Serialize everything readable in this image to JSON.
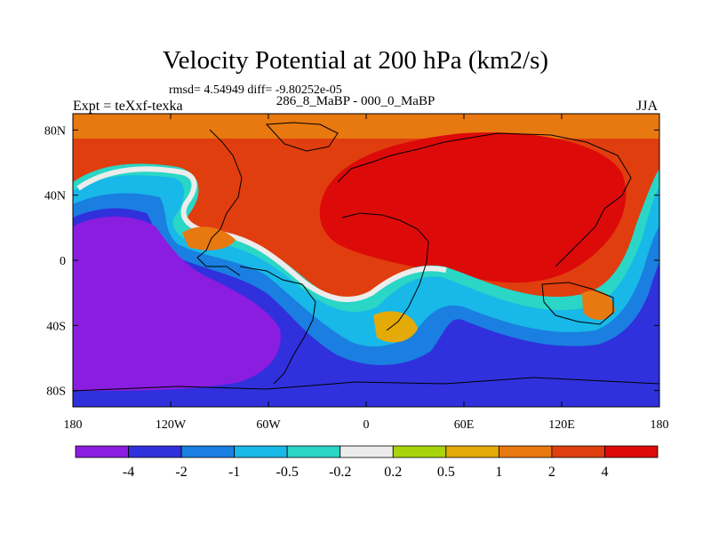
{
  "chart_data": {
    "type": "heatmap",
    "title": "Velocity Potential at 200 hPa (km2/s)",
    "stats_line": "rmsd= 4.54949 diff= -9.80252e-05",
    "left_label": "Expt = teXxf-texka",
    "center_label": "286_8_MaBP - 000_0_MaBP",
    "right_label": "JJA",
    "x_ticks": [
      "180",
      "120W",
      "60W",
      "0",
      "60E",
      "120E",
      "180"
    ],
    "x_tick_values": [
      -180,
      -120,
      -60,
      0,
      60,
      120,
      180
    ],
    "y_ticks": [
      "80N",
      "40N",
      "0",
      "40S",
      "80S"
    ],
    "y_tick_values": [
      80,
      40,
      0,
      -40,
      -80
    ],
    "xlim": [
      -180,
      180
    ],
    "ylim": [
      -90,
      90
    ],
    "colorbar": {
      "labels": [
        "-4",
        "-2",
        "-1",
        "-0.5",
        "-0.2",
        "0.2",
        "0.5",
        "1",
        "2",
        "4"
      ],
      "colors": [
        "#8a1de0",
        "#3030dd",
        "#1a7fe0",
        "#18b8e8",
        "#2ad6c6",
        "#ececec",
        "#a8d40e",
        "#e4aa08",
        "#e87810",
        "#e03e0e",
        "#dd0a0a"
      ]
    },
    "field_description": "Positive (red) over Eurasia/Africa/Atlantic N; negative (purple/blue) over Pacific and Southern Ocean"
  }
}
